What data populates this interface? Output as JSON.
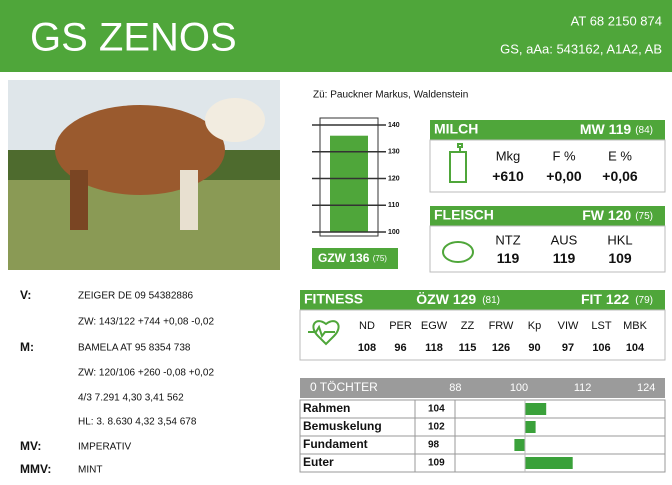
{
  "header": {
    "title": "GS ZENOS",
    "id": "AT 68 2150 874",
    "info": "GS, aAa: 543162, A1A2, AB"
  },
  "breeder": "Zü: Pauckner Markus, Waldenstein",
  "pedigree": [
    {
      "key": "V:",
      "text": "ZEIGER DE 09 54382886"
    },
    {
      "key": null,
      "text": "ZW: 143/122 +744 +0,08 -0,02"
    },
    {
      "key": "M:",
      "text": "BAMELA AT 95 8354 738"
    },
    {
      "key": null,
      "text": "ZW: 120/106 +260 -0,08 +0,02"
    },
    {
      "key": null,
      "text": "4/3 7.291 4,30 3,41 562"
    },
    {
      "key": null,
      "text": "HL: 3. 8.630 4,32 3,54 678"
    },
    {
      "key": "MV:",
      "text": "IMPERATIV"
    },
    {
      "key": "MMV:",
      "text": "MINT"
    }
  ],
  "gzw": {
    "label": "GZW",
    "value": 136,
    "reliability": "(75)",
    "scale": [
      100,
      110,
      120,
      130,
      140
    ],
    "range": [
      100,
      140
    ]
  },
  "milch": {
    "title": "MILCH",
    "index": "MW 119",
    "reliability": "(84)",
    "columns": [
      "Mkg",
      "F %",
      "E %"
    ],
    "values": [
      "+610",
      "+0,00",
      "+0,06"
    ]
  },
  "fleisch": {
    "title": "FLEISCH",
    "index": "FW 120",
    "reliability": "(75)",
    "columns": [
      "NTZ",
      "AUS",
      "HKL"
    ],
    "values": [
      "119",
      "119",
      "109"
    ]
  },
  "fitness": {
    "title": "FITNESS",
    "index1": "ÖZW 129",
    "reliability1": "(81)",
    "index2": "FIT 122",
    "reliability2": "(79)",
    "columns": [
      "ND",
      "PER",
      "EGW",
      "ZZ",
      "FRW",
      "Kp",
      "VIW",
      "LST",
      "MBK"
    ],
    "values": [
      "108",
      "96",
      "118",
      "115",
      "126",
      "90",
      "97",
      "106",
      "104"
    ]
  },
  "linear": {
    "title": "0 TÖCHTER",
    "ticks": [
      88,
      100,
      112,
      124
    ],
    "rows": [
      {
        "name": "Rahmen",
        "value": 104
      },
      {
        "name": "Bemuskelung",
        "value": 102
      },
      {
        "name": "Fundament",
        "value": 98
      },
      {
        "name": "Euter",
        "value": 109
      }
    ]
  }
}
